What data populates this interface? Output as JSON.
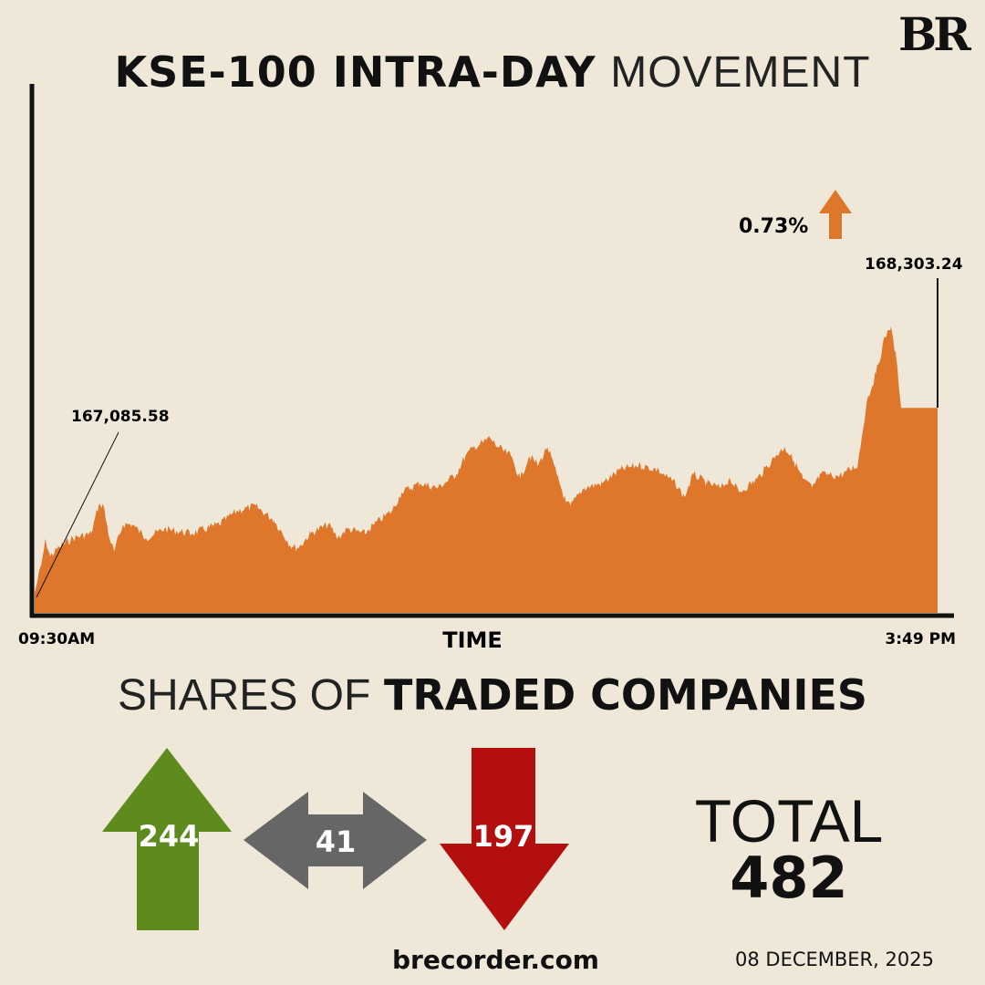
{
  "logo": "BR",
  "title": {
    "bold": "KSE-100 INTRA-DAY",
    "light": "MOVEMENT"
  },
  "chart_data": {
    "type": "area",
    "title": "KSE-100 INTRA-DAY MOVEMENT",
    "xlabel": "TIME",
    "x_tick_labels": {
      "start": "09:30AM",
      "end": "3:49 PM"
    },
    "x_unit": "minutes since 09:30",
    "xlim": [
      0,
      379
    ],
    "ylim": [
      166955,
      169000
    ],
    "color": "#de772c",
    "points": [
      [
        0,
        167085.58
      ],
      [
        2.7,
        167267
      ],
      [
        4.6,
        167435
      ],
      [
        6.5,
        167327
      ],
      [
        10.3,
        167387
      ],
      [
        16.1,
        167447
      ],
      [
        23.7,
        167477
      ],
      [
        26.8,
        167657
      ],
      [
        28.7,
        167669
      ],
      [
        31.4,
        167447
      ],
      [
        33.3,
        167357
      ],
      [
        37.1,
        167537
      ],
      [
        41,
        167537
      ],
      [
        46.7,
        167447
      ],
      [
        54.4,
        167507
      ],
      [
        65.9,
        167477
      ],
      [
        77.4,
        167537
      ],
      [
        85,
        167627
      ],
      [
        92.7,
        167657
      ],
      [
        100.3,
        167567
      ],
      [
        108,
        167387
      ],
      [
        111,
        167387
      ],
      [
        115.7,
        167477
      ],
      [
        123.3,
        167537
      ],
      [
        127.2,
        167447
      ],
      [
        131,
        167507
      ],
      [
        138.6,
        167477
      ],
      [
        142.5,
        167537
      ],
      [
        150.1,
        167627
      ],
      [
        154,
        167747
      ],
      [
        161.6,
        167807
      ],
      [
        169.3,
        167777
      ],
      [
        177,
        167867
      ],
      [
        180.8,
        167987
      ],
      [
        184.6,
        168047
      ],
      [
        188.4,
        168077
      ],
      [
        191.1,
        168107
      ],
      [
        194.2,
        168047
      ],
      [
        199.9,
        167987
      ],
      [
        203.8,
        167837
      ],
      [
        207.6,
        167987
      ],
      [
        211.4,
        167927
      ],
      [
        215.2,
        168047
      ],
      [
        219.1,
        167867
      ],
      [
        222.9,
        167687
      ],
      [
        224.8,
        167657
      ],
      [
        230.6,
        167777
      ],
      [
        238.2,
        167807
      ],
      [
        245.9,
        167897
      ],
      [
        253.5,
        167927
      ],
      [
        261.2,
        167897
      ],
      [
        268.9,
        167807
      ],
      [
        272.7,
        167717
      ],
      [
        276.5,
        167867
      ],
      [
        282.3,
        167807
      ],
      [
        288,
        167777
      ],
      [
        291.9,
        167837
      ],
      [
        295.7,
        167747
      ],
      [
        303.3,
        167837
      ],
      [
        311,
        167987
      ],
      [
        314.8,
        168047
      ],
      [
        318.6,
        167957
      ],
      [
        322.5,
        167837
      ],
      [
        326.3,
        167777
      ],
      [
        330.1,
        167867
      ],
      [
        337.8,
        167855
      ],
      [
        345.5,
        167927
      ],
      [
        349.3,
        168347
      ],
      [
        353.1,
        168527
      ],
      [
        356.9,
        168767
      ],
      [
        359.2,
        168839
      ],
      [
        361.5,
        168647
      ],
      [
        363.8,
        168303.24
      ],
      [
        379,
        168303.24
      ]
    ],
    "annotations": {
      "open_value": "167,085.58",
      "close_value": "168,303.24",
      "change": "0.73%",
      "change_direction": "up"
    }
  },
  "shares": {
    "heading_light": "SHARES OF",
    "heading_bold": "TRADED COMPANIES",
    "advanced": "244",
    "unchanged": "41",
    "declined": "197",
    "total_label": "TOTAL",
    "total_value": "482",
    "colors": {
      "advanced": "#5e8a1e",
      "unchanged": "#666666",
      "declined": "#b30f0f"
    }
  },
  "footer": {
    "site": "brecorder.com",
    "date": "08 DECEMBER, 2025"
  }
}
